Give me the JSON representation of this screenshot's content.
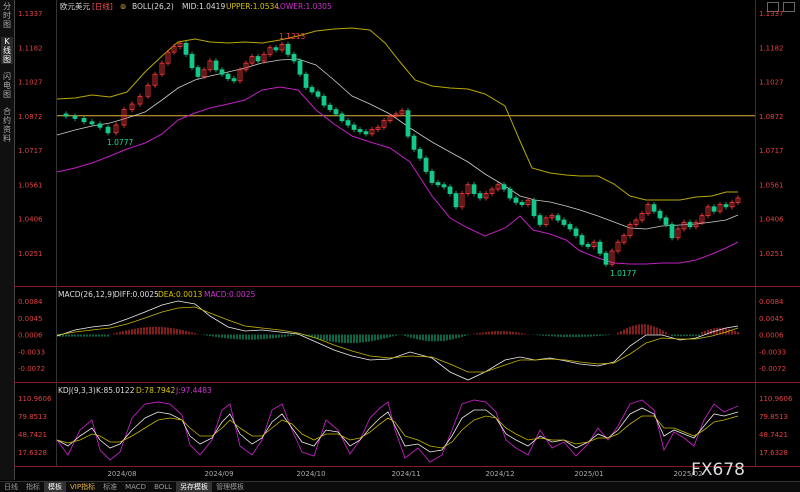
{
  "sidebar": {
    "items": [
      "分时图",
      "K线图",
      "闪电图",
      "合约资料"
    ],
    "active": 1
  },
  "corner_icons": [
    "window-restore-icon",
    "window-maximize-icon"
  ],
  "price_panel": {
    "symbol": "欧元美元",
    "period_tag": "[日线]",
    "indicator": "BOLL(26,2)",
    "mid_label": "MID:1.0419",
    "upper_label": "UPPER:1.0534",
    "lower_label": "LOWER:1.0305",
    "yticks": [
      "1.1337",
      "1.1182",
      "1.1027",
      "1.0872",
      "1.0717",
      "1.0561",
      "1.0406",
      "1.0251"
    ],
    "high_label": "1.1213",
    "low_label_1": "1.0777",
    "low_label_2": "1.0177",
    "colors": {
      "up": "#ff3b3b",
      "down": "#14c98b",
      "upper": "#b8a800",
      "mid": "#cccccc",
      "lower": "#c020c0",
      "hline": "#e3b341"
    }
  },
  "macd_panel": {
    "title": "MACD(26,12,9)",
    "diff_label": "DIFF:0.0025",
    "dea_label": "DEA:0.0013",
    "macd_label": "MACD:0.0025",
    "yticks": [
      "0.0084",
      "0.0045",
      "0.0006",
      "-0.0033",
      "-0.0072"
    ]
  },
  "kdj_panel": {
    "title": "KDJ(9,3,3)",
    "k_label": "K:85.0122",
    "d_label": "D:78.7942",
    "j_label": "J:97.4483",
    "yticks": [
      "110.9606",
      "79.8513",
      "48.7421",
      "17.6328"
    ]
  },
  "x_axis": {
    "labels": [
      "2024/08",
      "2024/09",
      "2024/10",
      "2024/11",
      "2024/12",
      "2025/01",
      "2025/02"
    ]
  },
  "watermark": "FX678",
  "bottom_tabs": [
    {
      "label": "日线",
      "active": false
    },
    {
      "label": "指标",
      "active": false
    },
    {
      "label": "模板",
      "active": true
    },
    {
      "label": "VIP指标",
      "active": false,
      "vip": true
    },
    {
      "label": "标准",
      "active": false
    },
    {
      "label": "MACD",
      "active": false
    },
    {
      "label": "BOLL",
      "active": false
    },
    {
      "label": "另存模板",
      "active": true
    },
    {
      "label": "管理模板",
      "active": false
    }
  ],
  "chart_data": {
    "type": "candlestick",
    "series": [
      {
        "name": "BOLL",
        "values": {
          "mid": 1.0419,
          "upper": 1.0534,
          "lower": 1.0305
        }
      },
      {
        "name": "MACD",
        "values": {
          "diff": 0.0025,
          "dea": 0.0013,
          "macd": 0.0025
        }
      },
      {
        "name": "KDJ",
        "values": {
          "k": 85.0122,
          "d": 78.7942,
          "j": 97.4483
        }
      }
    ],
    "price_ylim": [
      1.0177,
      1.1337
    ],
    "price_ticks": [
      1.1337,
      1.1182,
      1.1027,
      1.0872,
      1.0717,
      1.0561,
      1.0406,
      1.0251
    ],
    "macd_ticks": [
      0.0084,
      0.0045,
      0.0006,
      -0.0033,
      -0.0072
    ],
    "kdj_ticks": [
      110.9606,
      79.8513,
      48.7421,
      17.6328
    ],
    "annotated_high": 1.1213,
    "annotated_lows": [
      1.0777,
      1.0177
    ],
    "horizontal_line": 1.0872,
    "x_categories": [
      "2024/08",
      "2024/09",
      "2024/10",
      "2024/11",
      "2024/12",
      "2025/01",
      "2025/02"
    ],
    "grid": false
  }
}
